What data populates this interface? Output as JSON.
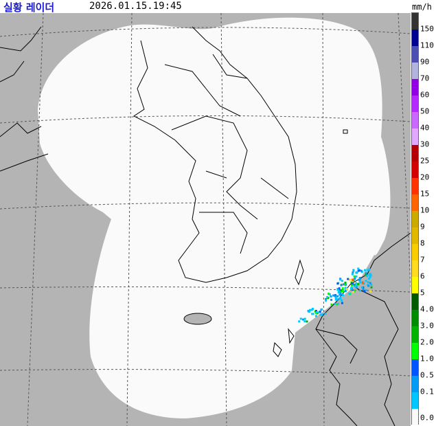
{
  "header": {
    "title": "실황 레이더",
    "timestamp": "2026.01.15.19:45",
    "unit": "mm/h"
  },
  "map": {
    "background_color": "#b4b4b4",
    "coverage_color": "#fafafa",
    "coastline_color": "#000000",
    "grid_style": "dashed"
  },
  "legend": {
    "items": [
      {
        "label": "",
        "color": "#333333"
      },
      {
        "label": "150",
        "color": "#000390"
      },
      {
        "label": "110",
        "color": "#4c4eb1"
      },
      {
        "label": "90",
        "color": "#b3b4de"
      },
      {
        "label": "70",
        "color": "#9300e4"
      },
      {
        "label": "60",
        "color": "#b329ff"
      },
      {
        "label": "50",
        "color": "#c969ff"
      },
      {
        "label": "40",
        "color": "#e0a9ff"
      },
      {
        "label": "30",
        "color": "#b40000"
      },
      {
        "label": "25",
        "color": "#d20000"
      },
      {
        "label": "20",
        "color": "#ff3300"
      },
      {
        "label": "15",
        "color": "#ff6600"
      },
      {
        "label": "10",
        "color": "#ccaa00"
      },
      {
        "label": "9",
        "color": "#e0b900"
      },
      {
        "label": "8",
        "color": "#f9cd00"
      },
      {
        "label": "7",
        "color": "#ffdc1f"
      },
      {
        "label": "6",
        "color": "#ffff00"
      },
      {
        "label": "5",
        "color": "#005a00"
      },
      {
        "label": "4.0",
        "color": "#008c00"
      },
      {
        "label": "3.0",
        "color": "#00b300"
      },
      {
        "label": "2.0",
        "color": "#00ff00"
      },
      {
        "label": "1.0",
        "color": "#0055ff"
      },
      {
        "label": "0.5",
        "color": "#009bf5"
      },
      {
        "label": "0.1",
        "color": "#00c8ff"
      },
      {
        "label": "0.0",
        "color": "#fafafa"
      }
    ]
  }
}
